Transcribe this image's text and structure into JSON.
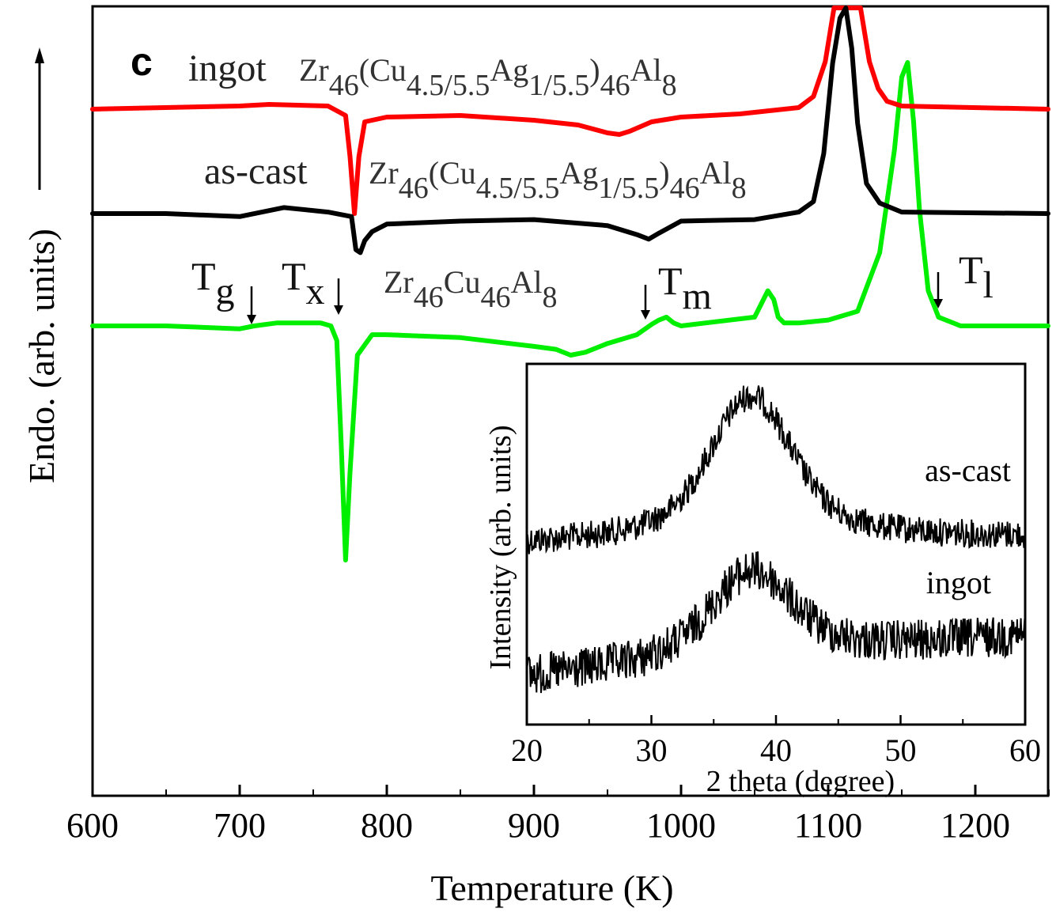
{
  "panel_label": "c",
  "chart_data": [
    {
      "type": "line",
      "title": "",
      "xlabel": "Temperature (K)",
      "ylabel": "Endo. (arb. units)",
      "xlim": [
        600,
        1250
      ],
      "xticks": [
        600,
        700,
        800,
        900,
        1000,
        1100,
        1200
      ],
      "tick_labels": [
        "600",
        "700",
        "800",
        "900",
        "1000",
        "1100",
        "1200"
      ],
      "colors": {
        "ingot": "#ff0000",
        "as_cast": "#000000",
        "base": "#00ee00"
      },
      "series": [
        {
          "name": "ingot Zr46(Cu4.5/5.5Ag1/5.5)46Al8",
          "key": "ingot",
          "label_prefix": "ingot",
          "formula": [
            {
              "t": "Zr",
              "s": "46"
            },
            {
              "t": "(Cu",
              "s": "4.5/5.5"
            },
            {
              "t": "Ag",
              "s": "1/5.5"
            },
            {
              "t": ")",
              "s": "46"
            },
            {
              "t": "Al",
              "s": "8"
            }
          ],
          "x": [
            600,
            700,
            720,
            760,
            772,
            775,
            778,
            781,
            785,
            800,
            850,
            900,
            930,
            950,
            958,
            965,
            980,
            1000,
            1040,
            1080,
            1090,
            1098,
            1104,
            1110,
            1116,
            1122,
            1128,
            1134,
            1140,
            1150,
            1250
          ],
          "y": [
            0,
            0.2,
            0.3,
            0.2,
            -0.4,
            -3.0,
            -6.6,
            -3.0,
            -0.8,
            -0.5,
            -0.4,
            -0.7,
            -1.0,
            -1.5,
            -1.6,
            -1.4,
            -0.8,
            -0.5,
            -0.3,
            0.1,
            0.8,
            3.0,
            8.0,
            12.0,
            12.0,
            7.0,
            3.0,
            1.3,
            0.5,
            0.2,
            0
          ]
        },
        {
          "name": "as-cast Zr46(Cu4.5/5.5Ag1/5.5)46Al8",
          "key": "as_cast",
          "label_prefix": "as-cast",
          "formula": [
            {
              "t": "Zr",
              "s": "46"
            },
            {
              "t": "(Cu",
              "s": "4.5/5.5"
            },
            {
              "t": "Ag",
              "s": "1/5.5"
            },
            {
              "t": ")",
              "s": "46"
            },
            {
              "t": "Al",
              "s": "8"
            }
          ],
          "x": [
            600,
            650,
            700,
            730,
            760,
            776,
            779,
            782,
            785,
            790,
            800,
            850,
            900,
            950,
            970,
            978,
            985,
            1000,
            1050,
            1080,
            1090,
            1097,
            1103,
            1108,
            1112,
            1116,
            1120,
            1126,
            1135,
            1150,
            1250
          ],
          "y": [
            0,
            0,
            -0.2,
            0.4,
            0.1,
            -0.2,
            -2.4,
            -2.6,
            -1.8,
            -1.2,
            -0.7,
            -0.5,
            -0.4,
            -0.8,
            -1.4,
            -1.7,
            -1.3,
            -0.5,
            -0.4,
            0.1,
            0.8,
            4.0,
            10.0,
            13.0,
            14.0,
            11.0,
            6.0,
            2.0,
            0.7,
            0.1,
            0
          ]
        },
        {
          "name": "Zr46Cu46Al8",
          "key": "base",
          "label_prefix": "",
          "formula": [
            {
              "t": "Zr",
              "s": "46"
            },
            {
              "t": "Cu",
              "s": "46"
            },
            {
              "t": "Al",
              "s": "8"
            }
          ],
          "x": [
            600,
            650,
            700,
            710,
            725,
            740,
            755,
            762,
            766,
            769,
            772,
            775,
            780,
            790,
            800,
            850,
            900,
            915,
            925,
            935,
            950,
            970,
            980,
            985,
            990,
            995,
            1000,
            1050,
            1055,
            1059,
            1063,
            1066,
            1070,
            1080,
            1100,
            1120,
            1135,
            1145,
            1150,
            1154,
            1158,
            1162,
            1168,
            1175,
            1190,
            1250
          ],
          "y": [
            0,
            0,
            -0.1,
            0,
            0.1,
            0.1,
            0.1,
            0,
            -0.5,
            -4.0,
            -8.0,
            -5.0,
            -1.0,
            -0.3,
            -0.3,
            -0.4,
            -0.7,
            -0.8,
            -1.0,
            -0.9,
            -0.6,
            -0.3,
            0.05,
            0.2,
            0.3,
            0.1,
            0,
            0.3,
            0.8,
            1.2,
            0.9,
            0.3,
            0.1,
            0.1,
            0.2,
            0.5,
            2.5,
            6.0,
            8.5,
            9.0,
            7.0,
            4.0,
            1.2,
            0.3,
            0,
            0
          ]
        }
      ],
      "annotations": [
        {
          "main": "T",
          "sub": "g",
          "x_value": 710
        },
        {
          "main": "T",
          "sub": "x",
          "x_value": 768
        },
        {
          "main": "T",
          "sub": "m",
          "x_value": 980
        },
        {
          "main": "T",
          "sub": "l",
          "x_value": 1175
        }
      ]
    },
    {
      "type": "line",
      "title": "",
      "xlabel": "2 theta (degree)",
      "ylabel": "Intensity (arb. units)",
      "xlim": [
        20,
        60
      ],
      "xticks": [
        20,
        30,
        40,
        50,
        60
      ],
      "tick_labels": [
        "20",
        "30",
        "40",
        "50",
        "60"
      ],
      "series": [
        {
          "name": "as-cast",
          "peak_x": 38,
          "baseline_left": 0.0,
          "peak_height": 1.0,
          "baseline_right": 0.05
        },
        {
          "name": "ingot",
          "peak_x": 38,
          "baseline_left": 0.0,
          "peak_height": 0.75,
          "baseline_right": 0.35
        }
      ]
    }
  ]
}
